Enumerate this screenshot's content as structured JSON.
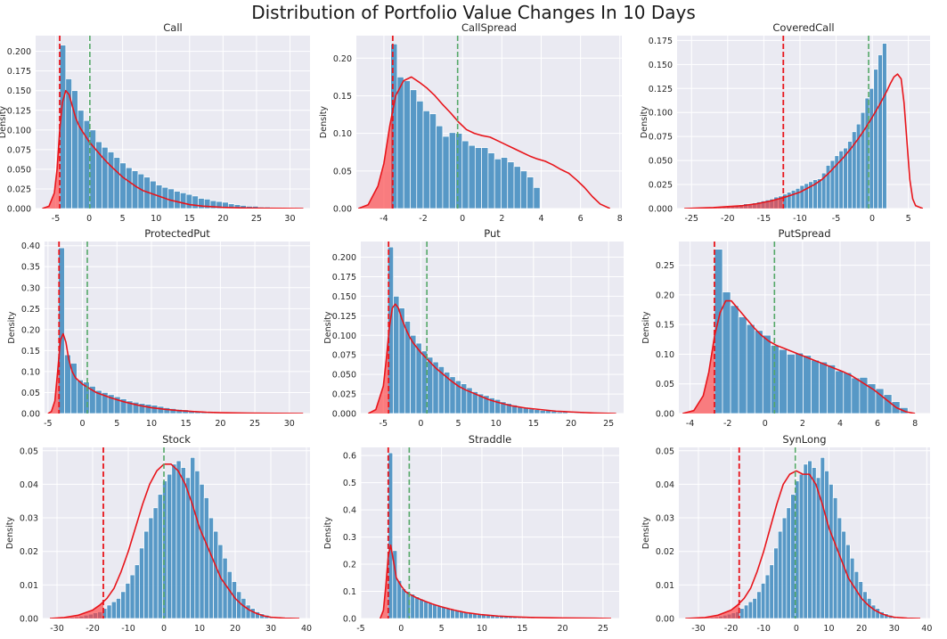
{
  "title": "Distribution of Portfolio Value Changes In 10 Days",
  "colors": {
    "panel_bg": "#eaeaf2",
    "grid": "#ffffff",
    "bar": "#4a90c2",
    "bar_edge": "#ffffff",
    "kde": "#e8151b",
    "tail_fill": "#ff4040",
    "var_line": "#e8151b",
    "mean_line": "#55a868"
  },
  "chart_data": [
    {
      "type": "histogram",
      "title": "Call",
      "ylabel": "Density",
      "xlim": [
        -8,
        33
      ],
      "ylim": [
        0,
        0.22
      ],
      "xticks": [
        -5,
        0,
        5,
        10,
        15,
        20,
        25,
        30
      ],
      "yticks": [
        0,
        0.025,
        0.05,
        0.075,
        0.1,
        0.125,
        0.15,
        0.175,
        0.2
      ],
      "ytick_labels": [
        "0.000",
        "0.025",
        "0.050",
        "0.075",
        "0.100",
        "0.125",
        "0.150",
        "0.175",
        "0.200"
      ],
      "bin_start": -4.4,
      "bin_width": 0.9,
      "values": [
        0.208,
        0.165,
        0.15,
        0.125,
        0.112,
        0.1,
        0.085,
        0.078,
        0.072,
        0.065,
        0.058,
        0.052,
        0.048,
        0.044,
        0.04,
        0.035,
        0.03,
        0.027,
        0.025,
        0.022,
        0.02,
        0.018,
        0.016,
        0.013,
        0.012,
        0.01,
        0.009,
        0.008,
        0.006,
        0.005,
        0.004,
        0.003,
        0.003,
        0.002,
        0.002,
        0.001,
        0.001,
        0.001,
        0.001
      ],
      "kde_x": [
        -7,
        -6,
        -5.2,
        -4.8,
        -4.4,
        -4,
        -3.5,
        -3,
        -2.5,
        -2,
        -1.5,
        -1,
        0,
        1,
        2,
        3,
        4,
        5,
        6,
        7,
        8,
        9,
        10,
        11,
        12,
        13,
        14,
        15,
        17,
        20,
        23,
        26,
        29,
        32
      ],
      "kde_y": [
        0,
        0.003,
        0.02,
        0.05,
        0.1,
        0.135,
        0.15,
        0.145,
        0.13,
        0.115,
        0.105,
        0.098,
        0.085,
        0.075,
        0.065,
        0.056,
        0.048,
        0.04,
        0.034,
        0.028,
        0.023,
        0.02,
        0.017,
        0.014,
        0.011,
        0.009,
        0.007,
        0.005,
        0.003,
        0.0015,
        0.0008,
        0.0004,
        0.0002,
        0
      ],
      "var_x": -4.4,
      "mean_x": 0.1
    },
    {
      "type": "histogram",
      "title": "CallSpread",
      "ylabel": "Density",
      "xlim": [
        -5.4,
        8.1
      ],
      "ylim": [
        0,
        0.23
      ],
      "xticks": [
        -4,
        -2,
        0,
        2,
        4,
        6,
        8
      ],
      "yticks": [
        0,
        0.05,
        0.1,
        0.15,
        0.2
      ],
      "ytick_labels": [
        "0.00",
        "0.05",
        "0.10",
        "0.15",
        "0.20"
      ],
      "bin_start": -3.65,
      "bin_width": 0.33,
      "values": [
        0.219,
        0.175,
        0.17,
        0.158,
        0.143,
        0.13,
        0.126,
        0.11,
        0.096,
        0.101,
        0.1,
        0.09,
        0.084,
        0.081,
        0.081,
        0.074,
        0.066,
        0.068,
        0.062,
        0.056,
        0.05,
        0.042,
        0.028
      ],
      "kde_x": [
        -5.3,
        -4.8,
        -4.3,
        -4,
        -3.7,
        -3.4,
        -3,
        -2.6,
        -2.2,
        -1.8,
        -1.4,
        -1,
        -0.6,
        -0.2,
        0.2,
        0.6,
        1,
        1.4,
        1.8,
        2.2,
        2.6,
        3,
        3.4,
        3.8,
        4.2,
        4.6,
        5,
        5.4,
        5.8,
        6.2,
        6.6,
        7,
        7.5
      ],
      "kde_y": [
        0,
        0.005,
        0.03,
        0.06,
        0.11,
        0.15,
        0.17,
        0.175,
        0.168,
        0.16,
        0.15,
        0.138,
        0.127,
        0.115,
        0.105,
        0.1,
        0.097,
        0.095,
        0.09,
        0.085,
        0.08,
        0.075,
        0.07,
        0.066,
        0.063,
        0.058,
        0.052,
        0.047,
        0.038,
        0.028,
        0.016,
        0.006,
        0
      ],
      "var_x": -3.55,
      "mean_x": -0.25
    },
    {
      "type": "histogram",
      "title": "CoveredCall",
      "ylabel": "Density",
      "xlim": [
        -27,
        8
      ],
      "ylim": [
        0,
        0.18
      ],
      "xticks": [
        -25,
        -20,
        -15,
        -10,
        -5,
        0,
        5
      ],
      "yticks": [
        0,
        0.025,
        0.05,
        0.075,
        0.1,
        0.125,
        0.15,
        0.175
      ],
      "ytick_labels": [
        "0.000",
        "0.025",
        "0.050",
        "0.075",
        "0.100",
        "0.125",
        "0.150",
        "0.175"
      ],
      "bin_start": -25,
      "bin_width": 0.6,
      "values": [
        0.0005,
        0.0005,
        0.0005,
        0.001,
        0.001,
        0.001,
        0.0015,
        0.002,
        0.002,
        0.003,
        0.003,
        0.004,
        0.005,
        0.005,
        0.006,
        0.007,
        0.008,
        0.009,
        0.01,
        0.012,
        0.013,
        0.015,
        0.017,
        0.019,
        0.021,
        0.024,
        0.026,
        0.028,
        0.03,
        0.031,
        0.037,
        0.045,
        0.05,
        0.055,
        0.06,
        0.063,
        0.07,
        0.08,
        0.088,
        0.1,
        0.115,
        0.125,
        0.145,
        0.16,
        0.172
      ],
      "kde_x": [
        -26,
        -24,
        -22,
        -20,
        -18,
        -16,
        -14,
        -12,
        -10,
        -9,
        -8,
        -7,
        -6,
        -5,
        -4,
        -3,
        -2,
        -1,
        0,
        1,
        2,
        2.5,
        3,
        3.5,
        4,
        4.4,
        4.8,
        5.2,
        5.6,
        6,
        7
      ],
      "kde_y": [
        0,
        0.0005,
        0.001,
        0.002,
        0.003,
        0.005,
        0.008,
        0.012,
        0.017,
        0.021,
        0.025,
        0.03,
        0.037,
        0.045,
        0.053,
        0.062,
        0.072,
        0.083,
        0.095,
        0.108,
        0.122,
        0.13,
        0.137,
        0.14,
        0.135,
        0.11,
        0.07,
        0.03,
        0.01,
        0.003,
        0
      ],
      "var_x": -12.3,
      "mean_x": -0.5
    },
    {
      "type": "histogram",
      "title": "ProtectedPut",
      "ylabel": "Density",
      "xlim": [
        -5.5,
        33
      ],
      "ylim": [
        0,
        0.41
      ],
      "xticks": [
        -5,
        0,
        5,
        10,
        15,
        20,
        25,
        30
      ],
      "yticks": [
        0,
        0.05,
        0.1,
        0.15,
        0.2,
        0.25,
        0.3,
        0.35,
        0.4
      ],
      "ytick_labels": [
        "0.00",
        "0.05",
        "0.10",
        "0.15",
        "0.20",
        "0.25",
        "0.30",
        "0.35",
        "0.40"
      ],
      "bin_start": -3.5,
      "bin_width": 0.9,
      "values": [
        0.395,
        0.14,
        0.12,
        0.08,
        0.075,
        0.065,
        0.055,
        0.05,
        0.045,
        0.04,
        0.035,
        0.03,
        0.027,
        0.024,
        0.022,
        0.02,
        0.017,
        0.014,
        0.012,
        0.01,
        0.009,
        0.007,
        0.006,
        0.005,
        0.004,
        0.003,
        0.003,
        0.002,
        0.002,
        0.001,
        0.001,
        0.001
      ],
      "kde_x": [
        -5,
        -4.5,
        -4,
        -3.6,
        -3.2,
        -2.8,
        -2.4,
        -2,
        -1.5,
        -1,
        0,
        1,
        2,
        3,
        4,
        5,
        6,
        7,
        8,
        10,
        12,
        14,
        16,
        18,
        20,
        24,
        28,
        32
      ],
      "kde_y": [
        0,
        0.005,
        0.03,
        0.1,
        0.175,
        0.19,
        0.17,
        0.13,
        0.1,
        0.085,
        0.07,
        0.06,
        0.05,
        0.044,
        0.038,
        0.033,
        0.028,
        0.024,
        0.02,
        0.014,
        0.01,
        0.007,
        0.005,
        0.003,
        0.002,
        0.001,
        0.0005,
        0
      ],
      "var_x": -3.4,
      "mean_x": 0.7
    },
    {
      "type": "histogram",
      "title": "Put",
      "ylabel": "Density",
      "xlim": [
        -8,
        27
      ],
      "ylim": [
        0,
        0.22
      ],
      "xticks": [
        -5,
        0,
        5,
        10,
        15,
        20,
        25
      ],
      "yticks": [
        0,
        0.025,
        0.05,
        0.075,
        0.1,
        0.125,
        0.15,
        0.175,
        0.2
      ],
      "ytick_labels": [
        "0.000",
        "0.025",
        "0.050",
        "0.075",
        "0.100",
        "0.125",
        "0.150",
        "0.175",
        "0.200"
      ],
      "bin_start": -4.4,
      "bin_width": 0.75,
      "values": [
        0.213,
        0.15,
        0.135,
        0.118,
        0.1,
        0.09,
        0.08,
        0.072,
        0.066,
        0.06,
        0.053,
        0.047,
        0.042,
        0.038,
        0.033,
        0.028,
        0.025,
        0.023,
        0.02,
        0.018,
        0.015,
        0.013,
        0.011,
        0.009,
        0.008,
        0.006,
        0.005,
        0.004,
        0.004,
        0.003,
        0.002,
        0.002,
        0.001,
        0.001,
        0.001
      ],
      "kde_x": [
        -7,
        -6,
        -5,
        -4.6,
        -4.2,
        -3.8,
        -3.4,
        -3,
        -2.5,
        -2,
        -1.5,
        -1,
        0,
        1,
        2,
        3,
        4,
        5,
        6,
        7,
        8,
        9,
        10,
        12,
        14,
        16,
        18,
        20,
        23,
        26
      ],
      "kde_y": [
        0,
        0.005,
        0.035,
        0.07,
        0.11,
        0.135,
        0.14,
        0.135,
        0.12,
        0.108,
        0.098,
        0.09,
        0.078,
        0.068,
        0.058,
        0.05,
        0.042,
        0.035,
        0.03,
        0.026,
        0.022,
        0.018,
        0.015,
        0.01,
        0.007,
        0.005,
        0.003,
        0.002,
        0.0007,
        0
      ],
      "var_x": -4.3,
      "mean_x": 0.8
    },
    {
      "type": "histogram",
      "title": "PutSpread",
      "ylabel": "Density",
      "xlim": [
        -4.6,
        8.8
      ],
      "ylim": [
        0,
        0.29
      ],
      "xticks": [
        -4,
        -2,
        0,
        2,
        4,
        6,
        8
      ],
      "yticks": [
        0,
        0.05,
        0.1,
        0.15,
        0.2,
        0.25
      ],
      "ytick_labels": [
        "0.00",
        "0.05",
        "0.10",
        "0.15",
        "0.20",
        "0.25"
      ],
      "bin_start": -2.7,
      "bin_width": 0.43,
      "values": [
        0.277,
        0.205,
        0.182,
        0.163,
        0.15,
        0.14,
        0.132,
        0.115,
        0.108,
        0.1,
        0.102,
        0.098,
        0.09,
        0.087,
        0.082,
        0.072,
        0.069,
        0.06,
        0.061,
        0.05,
        0.042,
        0.032,
        0.02,
        0.01
      ],
      "kde_x": [
        -4.4,
        -3.8,
        -3.3,
        -3,
        -2.7,
        -2.4,
        -2.1,
        -1.8,
        -1.4,
        -1,
        -0.6,
        -0.2,
        0.2,
        0.6,
        1,
        1.4,
        1.8,
        2.2,
        2.6,
        3,
        3.4,
        3.8,
        4.2,
        4.6,
        5,
        5.4,
        5.8,
        6.2,
        6.6,
        7,
        7.5,
        8
      ],
      "kde_y": [
        0,
        0.005,
        0.03,
        0.07,
        0.13,
        0.17,
        0.19,
        0.19,
        0.175,
        0.16,
        0.145,
        0.132,
        0.122,
        0.115,
        0.11,
        0.105,
        0.1,
        0.095,
        0.09,
        0.085,
        0.08,
        0.075,
        0.07,
        0.064,
        0.056,
        0.048,
        0.04,
        0.03,
        0.02,
        0.01,
        0.003,
        0
      ],
      "var_x": -2.7,
      "mean_x": 0.5
    },
    {
      "type": "histogram",
      "title": "Stock",
      "ylabel": "Density",
      "xlim": [
        -34,
        41
      ],
      "ylim": [
        0,
        0.051
      ],
      "xticks": [
        -30,
        -20,
        -10,
        0,
        10,
        20,
        30,
        40
      ],
      "yticks": [
        0,
        0.01,
        0.02,
        0.03,
        0.04,
        0.05
      ],
      "ytick_labels": [
        "0.00",
        "0.01",
        "0.02",
        "0.03",
        "0.04",
        "0.05"
      ],
      "bin_start": -29,
      "bin_width": 1.3,
      "values": [
        0.0002,
        0.0003,
        0.0004,
        0.0005,
        0.0007,
        0.001,
        0.0013,
        0.0017,
        0.002,
        0.003,
        0.004,
        0.005,
        0.006,
        0.008,
        0.0105,
        0.013,
        0.016,
        0.021,
        0.026,
        0.03,
        0.033,
        0.037,
        0.041,
        0.043,
        0.046,
        0.047,
        0.045,
        0.042,
        0.048,
        0.044,
        0.04,
        0.036,
        0.03,
        0.026,
        0.022,
        0.018,
        0.014,
        0.011,
        0.008,
        0.006,
        0.004,
        0.003,
        0.002,
        0.0014,
        0.001,
        0.0006,
        0.0004,
        0.0002,
        0.0001,
        0.0001
      ],
      "kde_x": [
        -32,
        -28,
        -24,
        -20,
        -18,
        -16,
        -14,
        -12,
        -10,
        -8,
        -6,
        -4,
        -2,
        0,
        2,
        4,
        6,
        8,
        10,
        12,
        14,
        16,
        18,
        20,
        22,
        24,
        26,
        28,
        30,
        34,
        38
      ],
      "kde_y": [
        0,
        0.0003,
        0.001,
        0.0025,
        0.004,
        0.006,
        0.009,
        0.014,
        0.02,
        0.027,
        0.034,
        0.04,
        0.044,
        0.046,
        0.046,
        0.044,
        0.04,
        0.034,
        0.027,
        0.022,
        0.017,
        0.012,
        0.009,
        0.006,
        0.004,
        0.0025,
        0.0015,
        0.0008,
        0.0004,
        0.0001,
        0
      ],
      "var_x": -17,
      "mean_x": 0
    },
    {
      "type": "histogram",
      "title": "Straddle",
      "ylabel": "Density",
      "xlim": [
        -5,
        27
      ],
      "ylim": [
        0,
        0.63
      ],
      "xticks": [
        -5,
        0,
        5,
        10,
        15,
        20,
        25
      ],
      "yticks": [
        0,
        0.1,
        0.2,
        0.3,
        0.4,
        0.5,
        0.6
      ],
      "ytick_labels": [
        "0.0",
        "0.1",
        "0.2",
        "0.3",
        "0.4",
        "0.5",
        "0.6"
      ],
      "bin_start": -1.6,
      "bin_width": 0.55,
      "values": [
        0.61,
        0.25,
        0.14,
        0.11,
        0.1,
        0.09,
        0.08,
        0.072,
        0.065,
        0.058,
        0.052,
        0.047,
        0.042,
        0.038,
        0.034,
        0.03,
        0.027,
        0.024,
        0.021,
        0.018,
        0.016,
        0.014,
        0.012,
        0.01,
        0.009,
        0.008,
        0.007,
        0.006,
        0.005,
        0.004,
        0.004,
        0.003,
        0.003,
        0.002,
        0.002,
        0.002,
        0.001,
        0.001,
        0.001,
        0.001,
        0.001,
        0.001
      ],
      "kde_x": [
        -2.6,
        -2.2,
        -1.9,
        -1.6,
        -1.3,
        -1,
        -0.6,
        0,
        0.5,
        1,
        2,
        3,
        4,
        5,
        6,
        7,
        8,
        10,
        12,
        14,
        16,
        20,
        24,
        26
      ],
      "kde_y": [
        0,
        0.03,
        0.12,
        0.23,
        0.27,
        0.22,
        0.15,
        0.12,
        0.1,
        0.09,
        0.075,
        0.063,
        0.052,
        0.043,
        0.035,
        0.028,
        0.022,
        0.014,
        0.009,
        0.006,
        0.004,
        0.002,
        0.001,
        0
      ],
      "var_x": -1.6,
      "mean_x": 1
    },
    {
      "type": "histogram",
      "title": "SynLong",
      "ylabel": "Density",
      "xlim": [
        -36,
        41
      ],
      "ylim": [
        0,
        0.051
      ],
      "xticks": [
        -30,
        -20,
        -10,
        0,
        10,
        20,
        30,
        40
      ],
      "yticks": [
        0,
        0.01,
        0.02,
        0.03,
        0.04,
        0.05
      ],
      "ytick_labels": [
        "0.00",
        "0.01",
        "0.02",
        "0.03",
        "0.04",
        "0.05"
      ],
      "bin_start": -29,
      "bin_width": 1.3,
      "values": [
        0.0002,
        0.0003,
        0.0004,
        0.0005,
        0.0007,
        0.001,
        0.0013,
        0.0017,
        0.002,
        0.003,
        0.004,
        0.005,
        0.006,
        0.008,
        0.0105,
        0.013,
        0.016,
        0.021,
        0.026,
        0.03,
        0.033,
        0.037,
        0.041,
        0.043,
        0.046,
        0.047,
        0.045,
        0.042,
        0.048,
        0.044,
        0.04,
        0.036,
        0.03,
        0.026,
        0.022,
        0.018,
        0.014,
        0.011,
        0.008,
        0.006,
        0.004,
        0.003,
        0.002,
        0.0014,
        0.001,
        0.0006,
        0.0004,
        0.0002,
        0.0001,
        0.0001
      ],
      "kde_x": [
        -34,
        -28,
        -24,
        -20,
        -18,
        -16,
        -14,
        -12,
        -10,
        -8,
        -6,
        -4,
        -2,
        0,
        2,
        4,
        6,
        8,
        10,
        12,
        14,
        16,
        18,
        20,
        22,
        24,
        26,
        28,
        30,
        34,
        38
      ],
      "kde_y": [
        0,
        0.0003,
        0.001,
        0.0025,
        0.004,
        0.006,
        0.009,
        0.014,
        0.02,
        0.027,
        0.034,
        0.04,
        0.043,
        0.044,
        0.043,
        0.043,
        0.04,
        0.034,
        0.027,
        0.022,
        0.017,
        0.012,
        0.009,
        0.006,
        0.004,
        0.0025,
        0.0015,
        0.0008,
        0.0004,
        0.0001,
        0
      ],
      "var_x": -17.5,
      "mean_x": -0.3
    }
  ]
}
